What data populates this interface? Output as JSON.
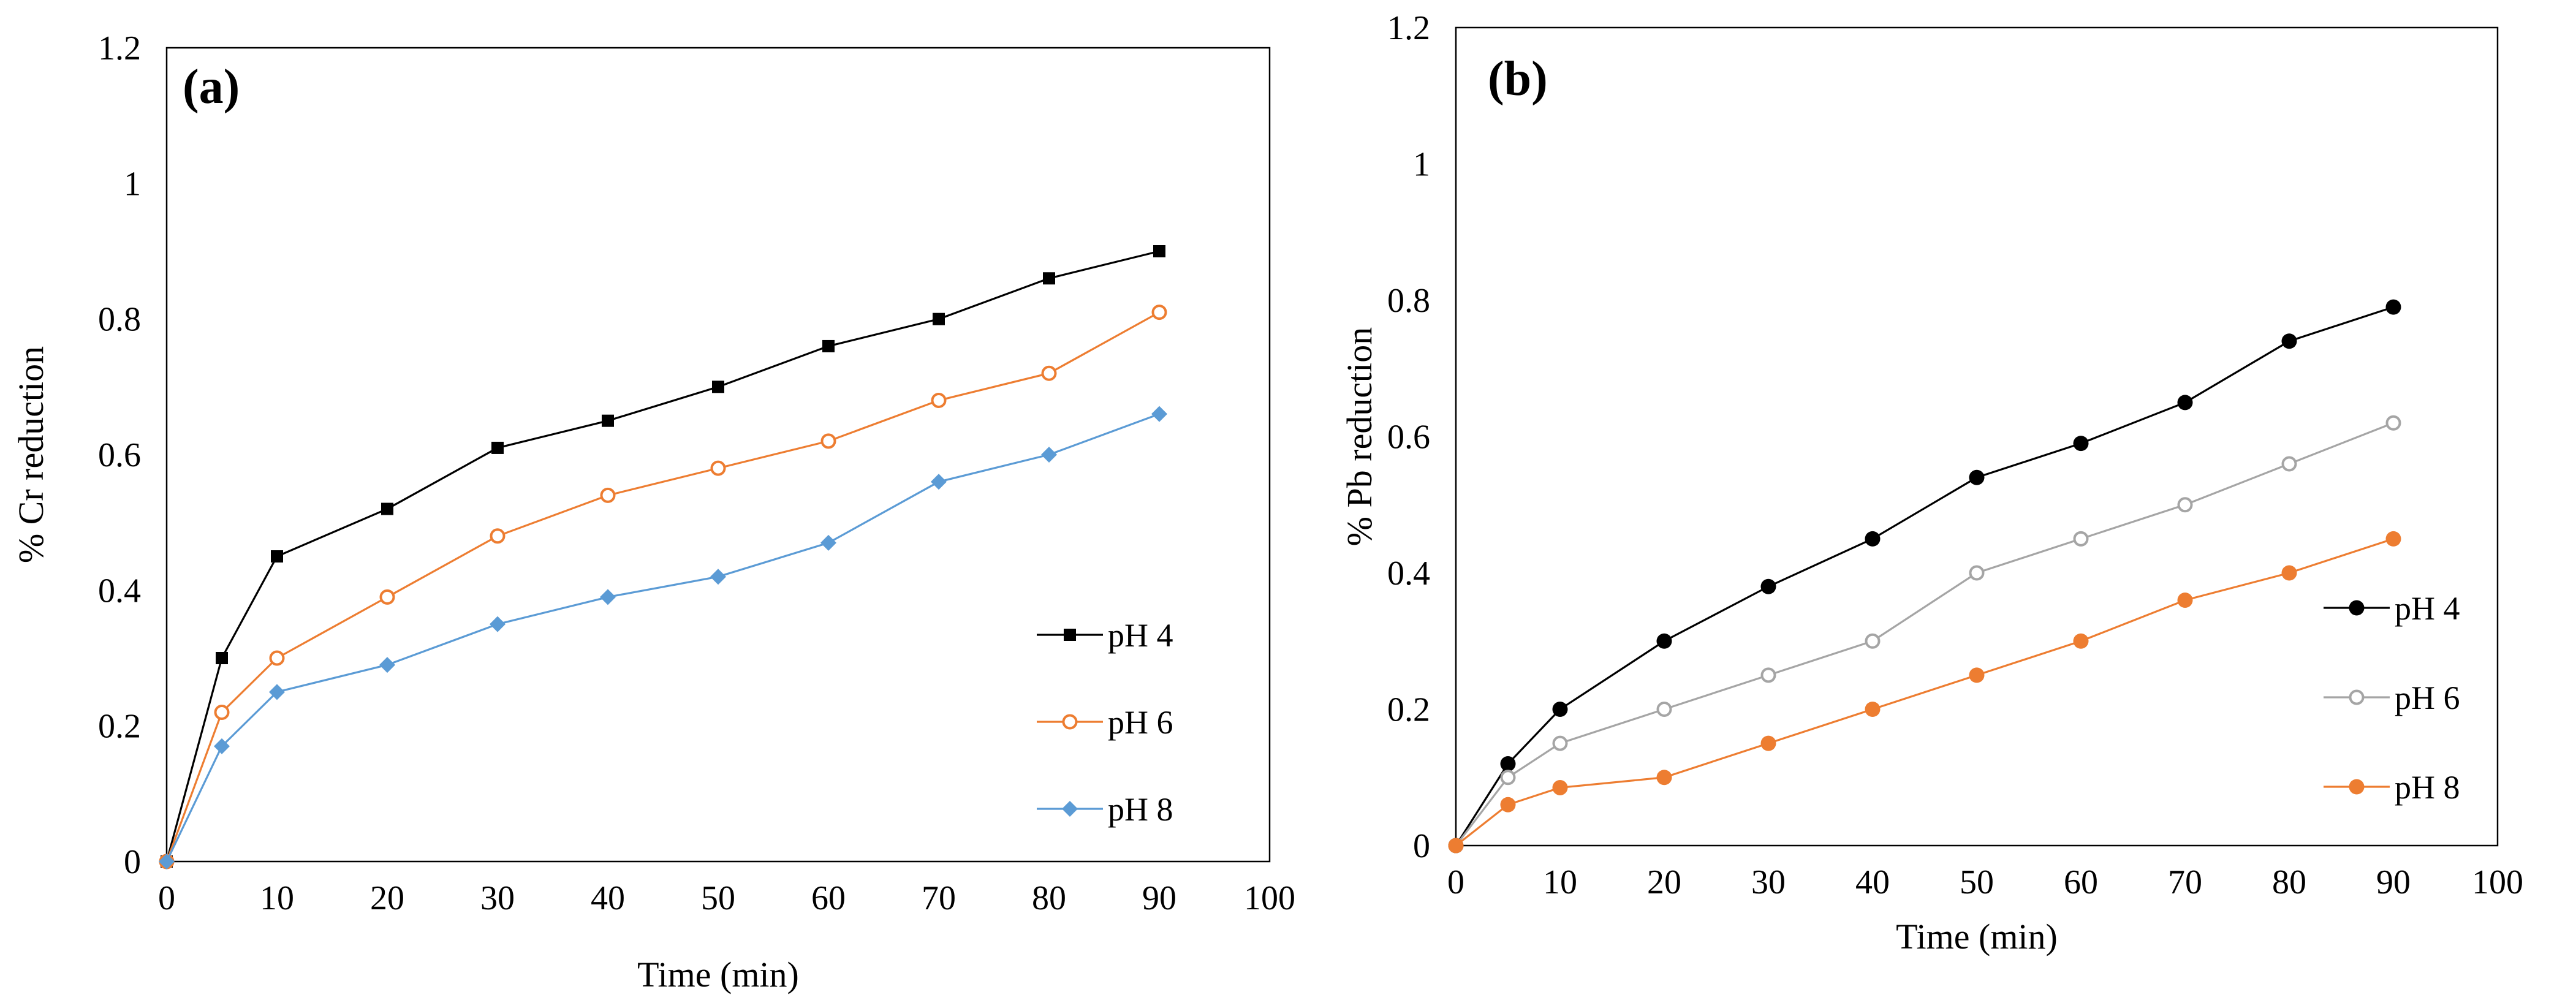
{
  "chart_data": [
    {
      "type": "line",
      "panel_label": "(a)",
      "title": "",
      "xlabel": "Time (min)",
      "ylabel": "% Cr reduction",
      "xlim": [
        0,
        100
      ],
      "ylim": [
        0,
        1.2
      ],
      "xticks": [
        0,
        10,
        20,
        30,
        40,
        50,
        60,
        70,
        80,
        90,
        100
      ],
      "yticks": [
        0,
        0.2,
        0.4,
        0.6,
        0.8,
        1,
        1.2
      ],
      "x": [
        0,
        5,
        10,
        20,
        30,
        40,
        50,
        60,
        70,
        80,
        90
      ],
      "grid": false,
      "legend_position": "lower-right",
      "series": [
        {
          "name": "pH 4",
          "marker": "square",
          "color": "#000000",
          "line_color": "#000000",
          "values": [
            0,
            0.3,
            0.45,
            0.52,
            0.61,
            0.65,
            0.7,
            0.76,
            0.8,
            0.86,
            0.9
          ]
        },
        {
          "name": "pH 6",
          "marker": "circle-open",
          "color": "#ED7D31",
          "line_color": "#ED7D31",
          "values": [
            0,
            0.22,
            0.3,
            0.39,
            0.48,
            0.54,
            0.58,
            0.62,
            0.68,
            0.72,
            0.81
          ]
        },
        {
          "name": "pH 8",
          "marker": "diamond",
          "color": "#5B9BD5",
          "line_color": "#5B9BD5",
          "values": [
            0,
            0.17,
            0.25,
            0.29,
            0.35,
            0.39,
            0.42,
            0.47,
            0.56,
            0.6,
            0.66
          ]
        }
      ]
    },
    {
      "type": "line",
      "panel_label": "(b)",
      "title": "",
      "xlabel": "Time (min)",
      "ylabel": "% Pb  reduction",
      "xlim": [
        0,
        100
      ],
      "ylim": [
        0,
        1.2
      ],
      "xticks": [
        0,
        10,
        20,
        30,
        40,
        50,
        60,
        70,
        80,
        90,
        100
      ],
      "yticks": [
        0,
        0.2,
        0.4,
        0.6,
        0.8,
        1,
        1.2
      ],
      "x": [
        0,
        5,
        10,
        20,
        30,
        40,
        50,
        60,
        70,
        80,
        90
      ],
      "grid": false,
      "legend_position": "lower-right",
      "series": [
        {
          "name": "pH 4",
          "marker": "circle",
          "color": "#000000",
          "line_color": "#000000",
          "values": [
            0,
            0.12,
            0.2,
            0.3,
            0.38,
            0.45,
            0.54,
            0.59,
            0.65,
            0.74,
            0.79
          ]
        },
        {
          "name": "pH 6",
          "marker": "circle-open",
          "color": "#A5A5A5",
          "line_color": "#A5A5A5",
          "values": [
            0,
            0.1,
            0.15,
            0.2,
            0.25,
            0.3,
            0.4,
            0.45,
            0.5,
            0.56,
            0.62
          ]
        },
        {
          "name": "pH 8",
          "marker": "circle",
          "color": "#ED7D31",
          "line_color": "#ED7D31",
          "values": [
            0,
            0.06,
            0.085,
            0.1,
            0.15,
            0.2,
            0.25,
            0.3,
            0.36,
            0.4,
            0.45
          ]
        }
      ]
    }
  ]
}
